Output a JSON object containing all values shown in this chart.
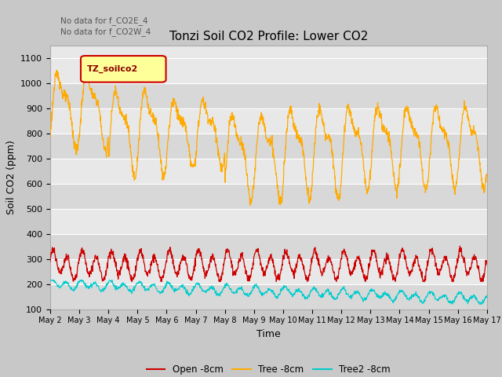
{
  "title": "Tonzi Soil CO2 Profile: Lower CO2",
  "xlabel": "Time",
  "ylabel": "Soil CO2 (ppm)",
  "ylim": [
    100,
    1150
  ],
  "yticks": [
    100,
    200,
    300,
    400,
    500,
    600,
    700,
    800,
    900,
    1000,
    1100
  ],
  "annotations": [
    "No data for f_CO2E_4",
    "No data for f_CO2W_4"
  ],
  "legend_label": "TZ_soilco2",
  "fig_bg_color": "#c8c8c8",
  "plot_bg_color": "#e8e8e8",
  "band_light": "#e8e8e8",
  "band_dark": "#d8d8d8",
  "series": {
    "open": {
      "color": "#cc0000",
      "label": "Open -8cm"
    },
    "tree": {
      "color": "#ffaa00",
      "label": "Tree -8cm"
    },
    "tree2": {
      "color": "#00cccc",
      "label": "Tree2 -8cm"
    }
  },
  "x_ticks": [
    2,
    3,
    4,
    5,
    6,
    7,
    8,
    9,
    10,
    11,
    12,
    13,
    14,
    15,
    16,
    17
  ]
}
